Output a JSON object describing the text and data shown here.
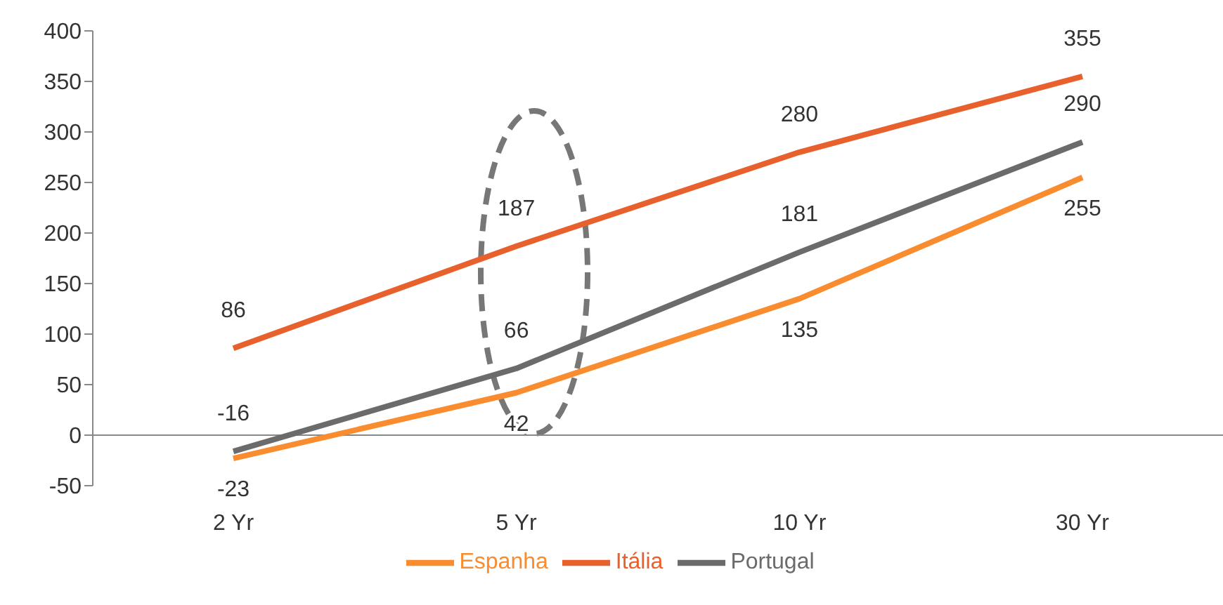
{
  "chart_data": {
    "type": "line",
    "categories": [
      "2 Yr",
      "5 Yr",
      "10 Yr",
      "30 Yr"
    ],
    "series": [
      {
        "name": "Itália",
        "color": "#e8602c",
        "values": [
          86,
          187,
          280,
          355
        ]
      },
      {
        "name": "Espanha",
        "color": "#f98c2e",
        "values": [
          -23,
          42,
          135,
          255
        ]
      },
      {
        "name": "Portugal",
        "color": "#6b6b6b",
        "values": [
          -16,
          66,
          181,
          290
        ]
      }
    ],
    "ref_lines": [
      {
        "axis": "y",
        "value": 0,
        "color": "#888888"
      }
    ],
    "ylim": [
      -50,
      400
    ],
    "yticks": [
      -50,
      0,
      50,
      100,
      150,
      200,
      250,
      300,
      350,
      400
    ],
    "data_labels": true,
    "legend": "bottom",
    "grid": false,
    "marker": "none",
    "line_style": "solid"
  }
}
